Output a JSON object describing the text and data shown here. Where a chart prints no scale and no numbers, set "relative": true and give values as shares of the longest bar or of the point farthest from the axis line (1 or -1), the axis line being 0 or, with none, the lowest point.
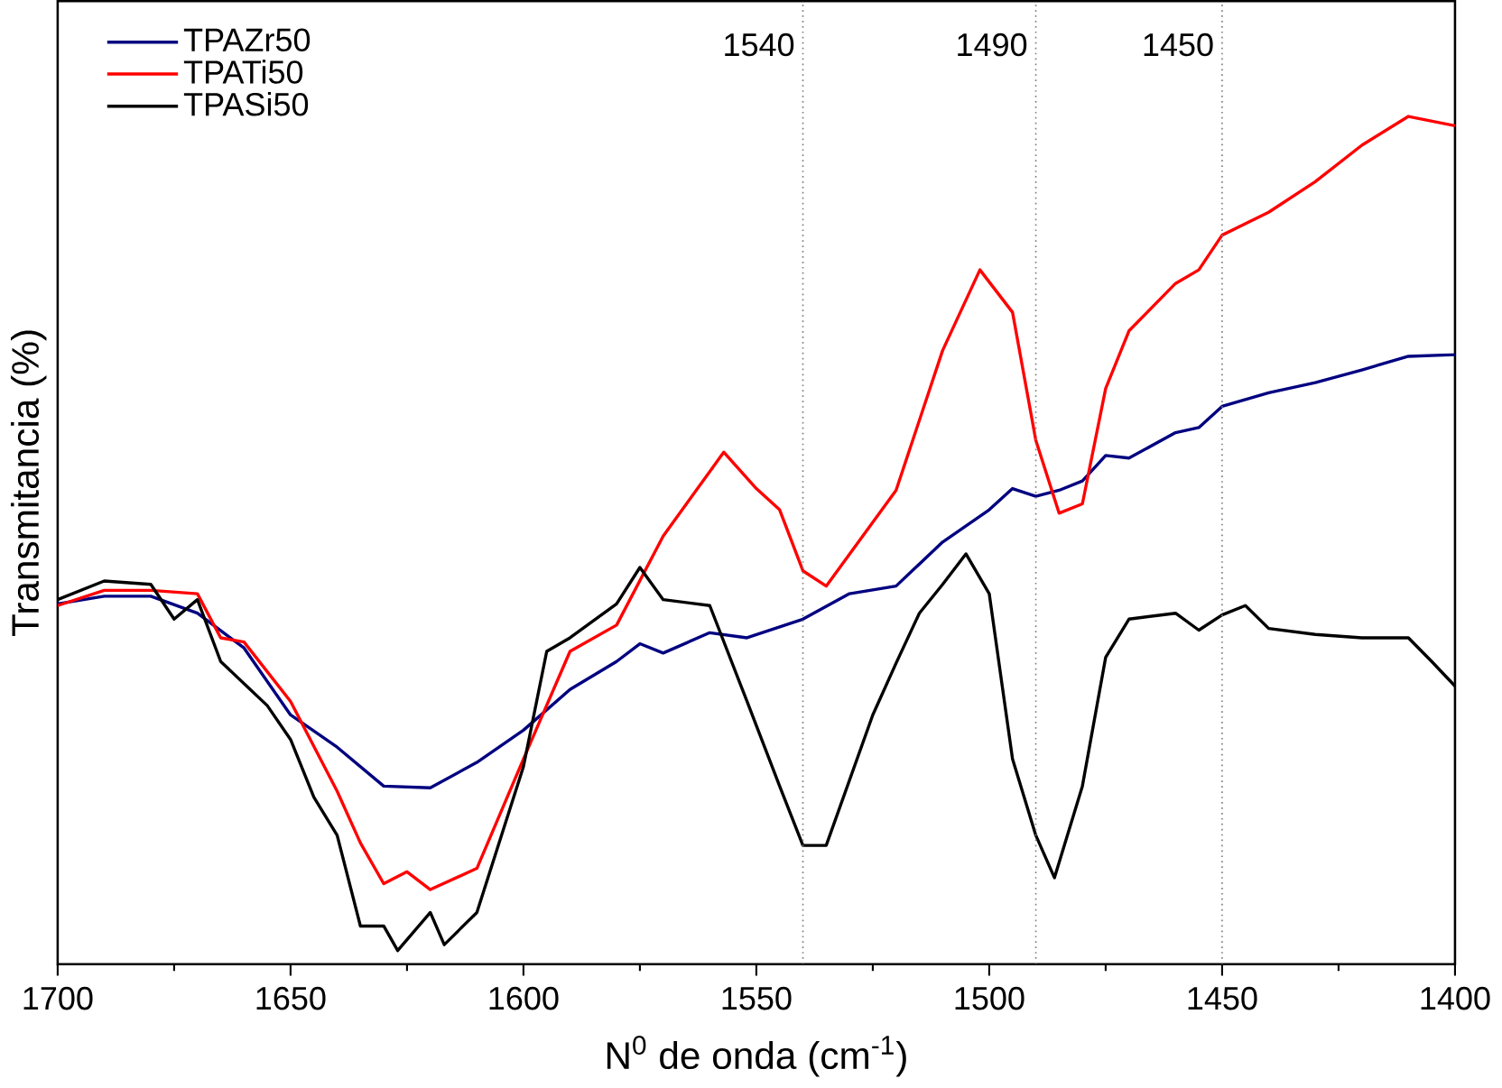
{
  "chart_data": {
    "type": "line",
    "relative": true,
    "xlabel": "N$^{0}$ de onda (cm$^{-1}$)",
    "ylabel": "Transmitancia (%)",
    "xlim": [
      1700,
      1400
    ],
    "xticks": [
      1700,
      1650,
      1600,
      1550,
      1500,
      1450,
      1400
    ],
    "tick_labels": "x",
    "legend": "top left",
    "marker": "none",
    "line_style": "solid",
    "grid": false,
    "ref_lines": [
      {
        "axis": "x",
        "value": 1540,
        "label": "1540",
        "color": "#808080",
        "line_style": "dotted"
      },
      {
        "axis": "x",
        "value": 1490,
        "label": "1490",
        "color": "#808080",
        "line_style": "dotted"
      },
      {
        "axis": "x",
        "value": 1450,
        "label": "1450",
        "color": "#808080",
        "line_style": "dotted"
      }
    ],
    "series": [
      {
        "name": "TPAZr50",
        "color": "#000080",
        "x": [
          1700,
          1690,
          1680,
          1670,
          1660,
          1650,
          1640,
          1635,
          1630,
          1620,
          1610,
          1600,
          1590,
          1580,
          1575,
          1570,
          1560,
          1552,
          1540,
          1530,
          1520,
          1510,
          1500,
          1495,
          1490,
          1485,
          1480,
          1475,
          1470,
          1460,
          1455,
          1450,
          1440,
          1430,
          1420,
          1410,
          1400
        ],
        "values": [
          0.425,
          0.434,
          0.434,
          0.414,
          0.373,
          0.294,
          0.256,
          0.233,
          0.21,
          0.208,
          0.238,
          0.276,
          0.324,
          0.357,
          0.378,
          0.367,
          0.391,
          0.385,
          0.407,
          0.437,
          0.446,
          0.498,
          0.536,
          0.561,
          0.552,
          0.559,
          0.57,
          0.6,
          0.597,
          0.627,
          0.633,
          0.658,
          0.674,
          0.686,
          0.701,
          0.717,
          0.719
        ]
      },
      {
        "name": "TPATi50",
        "color": "#ff0000",
        "x": [
          1700,
          1690,
          1680,
          1670,
          1665,
          1660,
          1650,
          1640,
          1635,
          1630,
          1625,
          1620,
          1610,
          1600,
          1590,
          1580,
          1570,
          1560,
          1557,
          1550,
          1545,
          1540,
          1535,
          1520,
          1510,
          1502,
          1495,
          1490,
          1485,
          1480,
          1475,
          1470,
          1460,
          1455,
          1450,
          1440,
          1430,
          1420,
          1410,
          1400
        ],
        "values": [
          0.423,
          0.441,
          0.441,
          0.437,
          0.385,
          0.38,
          0.31,
          0.204,
          0.143,
          0.095,
          0.109,
          0.088,
          0.113,
          0.242,
          0.369,
          0.4,
          0.505,
          0.581,
          0.604,
          0.561,
          0.536,
          0.464,
          0.446,
          0.559,
          0.724,
          0.819,
          0.769,
          0.618,
          0.532,
          0.543,
          0.679,
          0.747,
          0.803,
          0.819,
          0.86,
          0.887,
          0.923,
          0.966,
          1.0,
          0.989
        ]
      },
      {
        "name": "TPASi50",
        "color": "#000000",
        "x": [
          1700,
          1690,
          1680,
          1675,
          1670,
          1665,
          1655,
          1650,
          1645,
          1640,
          1635,
          1630,
          1627,
          1620,
          1617,
          1610,
          1600,
          1595,
          1590,
          1580,
          1575,
          1570,
          1560,
          1552,
          1545,
          1540,
          1535,
          1525,
          1520,
          1515,
          1510,
          1505,
          1500,
          1495,
          1490,
          1486,
          1480,
          1475,
          1470,
          1460,
          1455,
          1450,
          1445,
          1440,
          1430,
          1420,
          1410,
          1405,
          1400
        ],
        "values": [
          0.43,
          0.452,
          0.448,
          0.407,
          0.43,
          0.357,
          0.305,
          0.265,
          0.197,
          0.152,
          0.045,
          0.045,
          0.016,
          0.061,
          0.023,
          0.061,
          0.233,
          0.369,
          0.385,
          0.425,
          0.468,
          0.43,
          0.423,
          0.31,
          0.21,
          0.14,
          0.14,
          0.294,
          0.355,
          0.414,
          0.448,
          0.484,
          0.437,
          0.242,
          0.152,
          0.102,
          0.21,
          0.362,
          0.407,
          0.414,
          0.394,
          0.412,
          0.423,
          0.396,
          0.389,
          0.385,
          0.385,
          0.357,
          0.328
        ]
      }
    ]
  }
}
